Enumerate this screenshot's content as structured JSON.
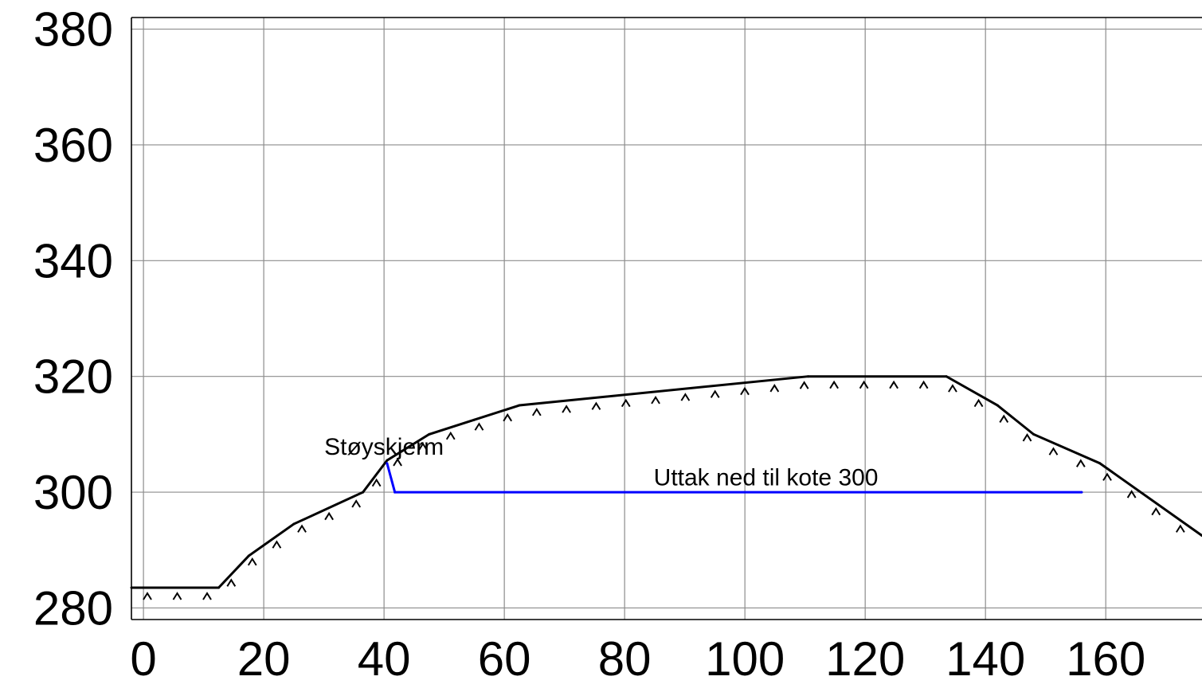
{
  "chart_data": {
    "type": "line",
    "title": "",
    "xlabel": "",
    "ylabel": "",
    "xlim": [
      -2,
      176
    ],
    "ylim": [
      278,
      382
    ],
    "grid": true,
    "x_ticks": [
      0,
      20,
      40,
      60,
      80,
      100,
      120,
      140,
      160
    ],
    "y_ticks": [
      280,
      300,
      320,
      340,
      360,
      380
    ],
    "x_tick_labels": [
      "0",
      "20",
      "40",
      "60",
      "80",
      100,
      "120",
      "140",
      "160"
    ],
    "y_tick_labels": [
      "280",
      "300",
      "320",
      "340",
      "360",
      "380"
    ],
    "series": [
      {
        "name": "",
        "color": "#000000",
        "style": "terrain-with-hatch-marks",
        "x": [
          -2,
          12.5,
          17.5,
          25,
          36.5,
          40.5,
          47.5,
          55,
          62.5,
          110.5,
          133.5,
          142,
          148,
          159,
          176
        ],
        "y": [
          283.5,
          283.5,
          289,
          294.5,
          300,
          305.5,
          310,
          312.5,
          315,
          320,
          320,
          315,
          310,
          305,
          292.5
        ]
      },
      {
        "name": "",
        "color": "#0000ff",
        "style": "solid",
        "x": [
          40.5,
          41.8,
          156
        ],
        "y": [
          305,
          300,
          300
        ]
      }
    ],
    "annotations": [
      {
        "text": "Støyskjerm",
        "x": 40,
        "y": 306.5
      },
      {
        "text": "Uttak ned til kote 300",
        "x": 103.5,
        "y": 301.2
      }
    ]
  }
}
